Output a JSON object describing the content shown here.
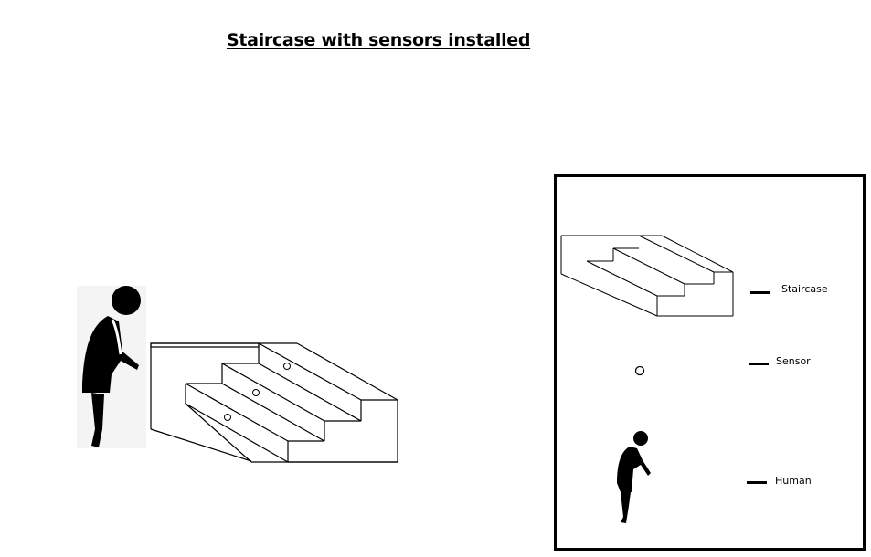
{
  "title": "Staircase with sensors installed",
  "legend": {
    "items": [
      {
        "label": "Staircase",
        "icon": "staircase-icon"
      },
      {
        "label": "Sensor",
        "icon": "sensor-icon"
      },
      {
        "label": "Human",
        "icon": "human-icon"
      }
    ]
  },
  "colors": {
    "ink": "#000000",
    "background": "#ffffff"
  }
}
